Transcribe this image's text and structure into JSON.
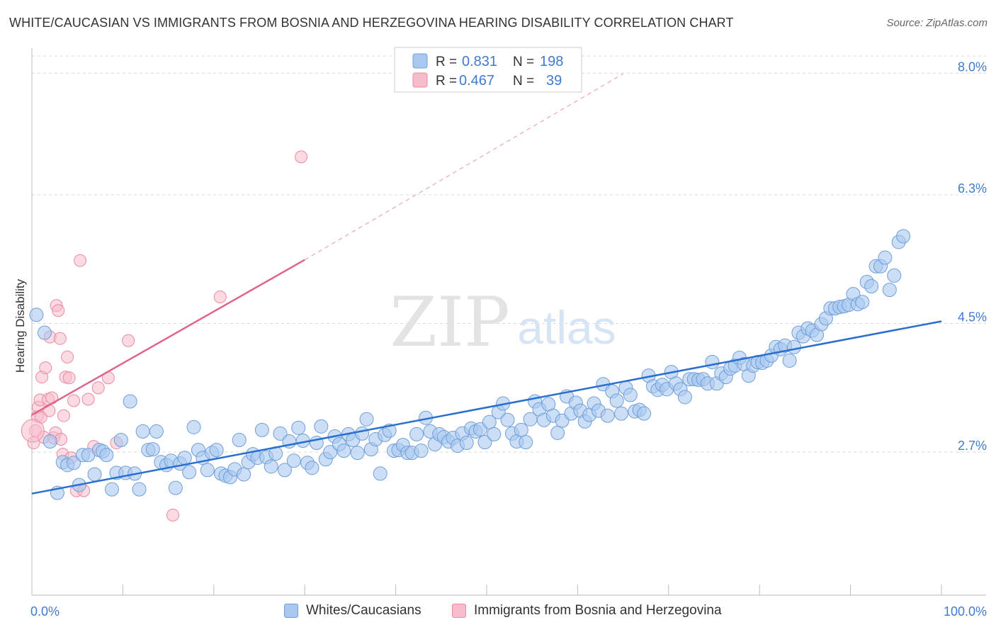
{
  "title": "WHITE/CAUCASIAN VS IMMIGRANTS FROM BOSNIA AND HERZEGOVINA HEARING DISABILITY CORRELATION CHART",
  "source": "Source: ZipAtlas.com",
  "watermark": {
    "zip": "ZIP",
    "atlas": "atlas"
  },
  "colors": {
    "blue_fill": "#a8c8f0",
    "blue_stroke": "#6f9fd8",
    "blue_line": "#2a6fcf",
    "pink_fill": "#f7bccb",
    "pink_stroke": "#e98aa3",
    "pink_line": "#e0648b",
    "tick_label": "#3f7bd1",
    "grid": "#d9d9d9"
  },
  "legend_top": {
    "rows": [
      {
        "r_label": "R =",
        "r_value": "0.831",
        "n_label": "N =",
        "n_value": "198"
      },
      {
        "r_label": "R =",
        "r_value": "0.467",
        "n_label": "N =",
        "n_value": "39"
      }
    ]
  },
  "legend_bottom": {
    "series": [
      "Whites/Caucasians",
      "Immigrants from Bosnia and Herzegovina"
    ]
  },
  "chart_data": {
    "type": "scatter",
    "title": "WHITE/CAUCASIAN VS IMMIGRANTS FROM BOSNIA AND HERZEGOVINA HEARING DISABILITY CORRELATION CHART",
    "xlabel": "",
    "ylabel": "Hearing Disability",
    "x_tick_labels": [
      "0.0%",
      "100.0%"
    ],
    "y_tick_labels": [
      "2.7%",
      "4.5%",
      "6.3%",
      "8.0%"
    ],
    "y_ticks": [
      2.7,
      4.5,
      6.3,
      8.0
    ],
    "xlim": [
      0,
      100
    ],
    "ylim": [
      0.7,
      8.3
    ],
    "grid": true,
    "series": [
      {
        "name": "Whites/Caucasians",
        "color": "#a8c8f0",
        "r": 0.831,
        "n": 198,
        "trend": {
          "x": [
            0,
            100
          ],
          "y": [
            2.12,
            4.53
          ]
        },
        "points": [
          [
            0.5,
            4.62
          ],
          [
            1.4,
            4.37
          ],
          [
            2,
            2.85
          ],
          [
            2.8,
            2.13
          ],
          [
            3.4,
            2.56
          ],
          [
            3.9,
            2.52
          ],
          [
            4.6,
            2.55
          ],
          [
            5.2,
            2.24
          ],
          [
            5.6,
            2.66
          ],
          [
            6.2,
            2.66
          ],
          [
            6.9,
            2.39
          ],
          [
            7.4,
            2.73
          ],
          [
            7.8,
            2.71
          ],
          [
            8.2,
            2.66
          ],
          [
            8.8,
            2.18
          ],
          [
            9.3,
            2.41
          ],
          [
            9.8,
            2.87
          ],
          [
            10.3,
            2.41
          ],
          [
            10.8,
            3.41
          ],
          [
            11.3,
            2.4
          ],
          [
            11.8,
            2.18
          ],
          [
            12.2,
            2.99
          ],
          [
            12.8,
            2.73
          ],
          [
            13.3,
            2.74
          ],
          [
            13.7,
            2.99
          ],
          [
            14.2,
            2.56
          ],
          [
            14.8,
            2.52
          ],
          [
            15.3,
            2.58
          ],
          [
            15.8,
            2.2
          ],
          [
            16.3,
            2.54
          ],
          [
            16.8,
            2.62
          ],
          [
            17.3,
            2.42
          ],
          [
            17.8,
            3.05
          ],
          [
            18.3,
            2.73
          ],
          [
            18.8,
            2.62
          ],
          [
            19.3,
            2.45
          ],
          [
            19.8,
            2.69
          ],
          [
            20.3,
            2.73
          ],
          [
            20.8,
            2.4
          ],
          [
            21.3,
            2.37
          ],
          [
            21.8,
            2.35
          ],
          [
            22.3,
            2.46
          ],
          [
            22.8,
            2.87
          ],
          [
            23.3,
            2.39
          ],
          [
            23.8,
            2.56
          ],
          [
            24.3,
            2.67
          ],
          [
            24.8,
            2.62
          ],
          [
            25.3,
            3.01
          ],
          [
            25.8,
            2.63
          ],
          [
            26.3,
            2.5
          ],
          [
            26.8,
            2.68
          ],
          [
            27.3,
            2.96
          ],
          [
            27.8,
            2.45
          ],
          [
            28.3,
            2.85
          ],
          [
            28.8,
            2.58
          ],
          [
            29.3,
            3.04
          ],
          [
            29.8,
            2.86
          ],
          [
            30.3,
            2.55
          ],
          [
            30.8,
            2.48
          ],
          [
            31.3,
            2.83
          ],
          [
            31.8,
            3.06
          ],
          [
            32.3,
            2.6
          ],
          [
            32.8,
            2.7
          ],
          [
            33.3,
            2.92
          ],
          [
            33.8,
            2.81
          ],
          [
            34.3,
            2.72
          ],
          [
            34.8,
            2.95
          ],
          [
            35.3,
            2.87
          ],
          [
            35.8,
            2.69
          ],
          [
            36.3,
            2.96
          ],
          [
            36.8,
            3.16
          ],
          [
            37.3,
            2.74
          ],
          [
            37.8,
            2.88
          ],
          [
            38.3,
            2.4
          ],
          [
            38.8,
            2.94
          ],
          [
            39.3,
            3.0
          ],
          [
            39.8,
            2.72
          ],
          [
            40.3,
            2.73
          ],
          [
            40.8,
            2.8
          ],
          [
            41.3,
            2.69
          ],
          [
            41.8,
            2.69
          ],
          [
            42.3,
            2.95
          ],
          [
            42.8,
            2.72
          ],
          [
            43.3,
            3.18
          ],
          [
            43.8,
            2.99
          ],
          [
            44.3,
            2.81
          ],
          [
            44.8,
            2.95
          ],
          [
            45.3,
            2.91
          ],
          [
            45.8,
            2.85
          ],
          [
            46.3,
            2.9
          ],
          [
            46.8,
            2.79
          ],
          [
            47.3,
            2.96
          ],
          [
            47.8,
            2.83
          ],
          [
            48.3,
            3.03
          ],
          [
            48.8,
            2.99
          ],
          [
            49.3,
            3.02
          ],
          [
            49.8,
            2.84
          ],
          [
            50.3,
            3.12
          ],
          [
            50.8,
            2.95
          ],
          [
            51.3,
            3.26
          ],
          [
            51.8,
            3.38
          ],
          [
            52.3,
            3.15
          ],
          [
            52.8,
            2.96
          ],
          [
            53.3,
            2.85
          ],
          [
            53.8,
            3.01
          ],
          [
            54.3,
            2.84
          ],
          [
            54.8,
            3.16
          ],
          [
            55.3,
            3.41
          ],
          [
            55.8,
            3.3
          ],
          [
            56.3,
            3.15
          ],
          [
            56.8,
            3.37
          ],
          [
            57.3,
            3.21
          ],
          [
            57.8,
            2.97
          ],
          [
            58.3,
            3.14
          ],
          [
            58.8,
            3.48
          ],
          [
            59.3,
            3.24
          ],
          [
            59.8,
            3.39
          ],
          [
            60.3,
            3.28
          ],
          [
            60.8,
            3.13
          ],
          [
            61.3,
            3.22
          ],
          [
            61.8,
            3.38
          ],
          [
            62.3,
            3.28
          ],
          [
            62.8,
            3.65
          ],
          [
            63.3,
            3.21
          ],
          [
            63.8,
            3.55
          ],
          [
            64.3,
            3.42
          ],
          [
            64.8,
            3.24
          ],
          [
            65.3,
            3.6
          ],
          [
            65.8,
            3.5
          ],
          [
            66.3,
            3.27
          ],
          [
            66.8,
            3.29
          ],
          [
            67.3,
            3.24
          ],
          [
            67.8,
            3.77
          ],
          [
            68.3,
            3.62
          ],
          [
            68.8,
            3.57
          ],
          [
            69.3,
            3.64
          ],
          [
            69.8,
            3.58
          ],
          [
            70.3,
            3.82
          ],
          [
            70.8,
            3.66
          ],
          [
            71.3,
            3.58
          ],
          [
            71.8,
            3.47
          ],
          [
            72.3,
            3.72
          ],
          [
            72.8,
            3.72
          ],
          [
            73.3,
            3.71
          ],
          [
            73.8,
            3.72
          ],
          [
            74.3,
            3.66
          ],
          [
            74.8,
            3.96
          ],
          [
            75.3,
            3.66
          ],
          [
            75.8,
            3.8
          ],
          [
            76.3,
            3.75
          ],
          [
            76.8,
            3.87
          ],
          [
            77.3,
            3.91
          ],
          [
            77.8,
            4.02
          ],
          [
            78.3,
            3.93
          ],
          [
            78.8,
            3.77
          ],
          [
            79.3,
            3.91
          ],
          [
            79.8,
            3.96
          ],
          [
            80.3,
            3.95
          ],
          [
            80.8,
            3.98
          ],
          [
            81.3,
            4.05
          ],
          [
            81.8,
            4.17
          ],
          [
            82.3,
            4.14
          ],
          [
            82.8,
            4.19
          ],
          [
            83.3,
            3.98
          ],
          [
            83.8,
            4.17
          ],
          [
            84.3,
            4.37
          ],
          [
            84.8,
            4.32
          ],
          [
            85.3,
            4.43
          ],
          [
            85.8,
            4.4
          ],
          [
            86.3,
            4.34
          ],
          [
            86.8,
            4.49
          ],
          [
            87.3,
            4.57
          ],
          [
            87.8,
            4.71
          ],
          [
            88.3,
            4.71
          ],
          [
            88.8,
            4.73
          ],
          [
            89.3,
            4.74
          ],
          [
            89.8,
            4.76
          ],
          [
            90.3,
            4.91
          ],
          [
            90.8,
            4.77
          ],
          [
            91.3,
            4.8
          ],
          [
            91.8,
            5.08
          ],
          [
            92.3,
            5.02
          ],
          [
            92.8,
            5.3
          ],
          [
            93.3,
            5.3
          ],
          [
            93.8,
            5.42
          ],
          [
            94.3,
            4.97
          ],
          [
            94.8,
            5.17
          ],
          [
            95.3,
            5.64
          ],
          [
            95.8,
            5.72
          ]
        ]
      },
      {
        "name": "Immigrants from Bosnia and Herzegovina",
        "color": "#f7bccb",
        "r": 0.467,
        "n": 39,
        "trend_solid": {
          "x": [
            0,
            30
          ],
          "y": [
            3.22,
            5.39
          ]
        },
        "trend_dashed": {
          "x": [
            30,
            65
          ],
          "y": [
            5.39,
            7.99
          ]
        },
        "points": [
          [
            0.2,
            2.83
          ],
          [
            0.4,
            3.0
          ],
          [
            0.6,
            3.2
          ],
          [
            0.7,
            3.33
          ],
          [
            0.9,
            3.43
          ],
          [
            1.0,
            3.19
          ],
          [
            1.1,
            3.75
          ],
          [
            1.3,
            2.91
          ],
          [
            1.5,
            3.88
          ],
          [
            1.8,
            3.44
          ],
          [
            1.9,
            3.28
          ],
          [
            2.0,
            4.31
          ],
          [
            2.2,
            3.46
          ],
          [
            2.4,
            2.9
          ],
          [
            2.6,
            2.97
          ],
          [
            2.7,
            4.75
          ],
          [
            2.9,
            4.68
          ],
          [
            3.1,
            4.29
          ],
          [
            3.2,
            2.88
          ],
          [
            3.4,
            2.67
          ],
          [
            3.5,
            3.21
          ],
          [
            3.7,
            3.75
          ],
          [
            3.9,
            4.03
          ],
          [
            4.1,
            3.74
          ],
          [
            4.3,
            2.62
          ],
          [
            4.6,
            3.42
          ],
          [
            4.9,
            2.16
          ],
          [
            5.3,
            5.38
          ],
          [
            5.7,
            2.16
          ],
          [
            6.2,
            3.44
          ],
          [
            6.8,
            2.78
          ],
          [
            7.3,
            3.6
          ],
          [
            8.4,
            3.74
          ],
          [
            9.3,
            2.83
          ],
          [
            10.6,
            4.26
          ],
          [
            15.5,
            1.82
          ],
          [
            20.7,
            4.87
          ],
          [
            29.6,
            6.83
          ],
          [
            0.1,
            3.0
          ]
        ]
      }
    ]
  }
}
